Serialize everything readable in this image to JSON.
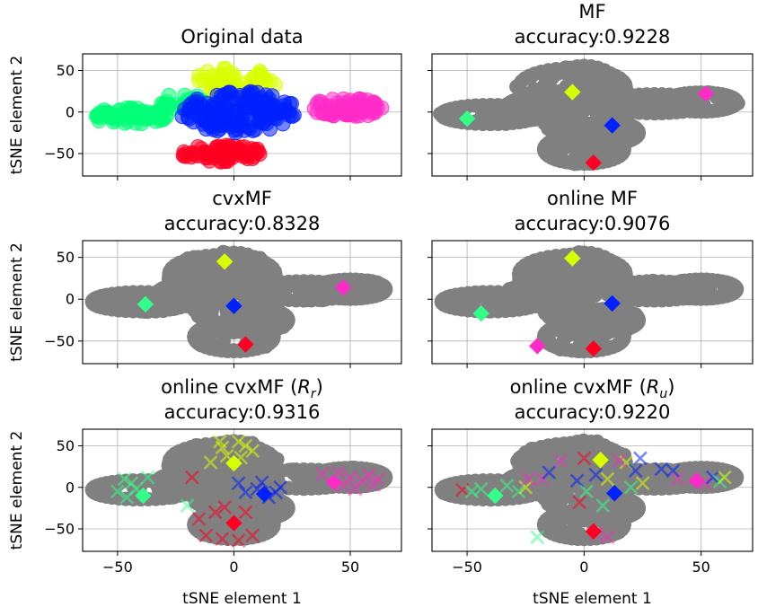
{
  "chart_data": [
    {
      "type": "scatter",
      "title": [
        "Original data"
      ],
      "ylabel": "tSNE element 2",
      "xlabel": "",
      "xlim": [
        -65,
        72
      ],
      "ylim": [
        -77,
        70
      ],
      "xticks": [
        -50,
        0,
        50
      ],
      "yticks": [
        50,
        0,
        -50
      ],
      "show_xticklabels": false,
      "show_yticklabels": true,
      "grid": true,
      "clusters": [
        {
          "color": "#d8ff00",
          "cx": 0,
          "cy": 35,
          "rx": 18,
          "ry": 18,
          "n": 60
        },
        {
          "color": "#ff2bc8",
          "cx": 48,
          "cy": 5,
          "rx": 16,
          "ry": 12,
          "n": 80
        },
        {
          "color": "#00ff77",
          "cx": -45,
          "cy": -5,
          "rx": 16,
          "ry": 10,
          "n": 70
        },
        {
          "color": "#ff0022",
          "cx": -5,
          "cy": -50,
          "rx": 18,
          "ry": 10,
          "n": 70
        },
        {
          "color": "#00ff77",
          "cx": -22,
          "cy": 12,
          "rx": 10,
          "ry": 10,
          "n": 25
        },
        {
          "color": "#0020ff",
          "cx": 2,
          "cy": 0,
          "rx": 25,
          "ry": 25,
          "n": 160
        }
      ],
      "centroids": [],
      "crosses": []
    },
    {
      "type": "scatter",
      "title": [
        "MF",
        "accuracy:0.9228"
      ],
      "ylabel": "",
      "xlabel": "",
      "xlim": [
        -65,
        72
      ],
      "ylim": [
        -77,
        70
      ],
      "xticks": [
        -50,
        0,
        50
      ],
      "yticks": [
        50,
        0,
        -50
      ],
      "show_xticklabels": false,
      "show_yticklabels": false,
      "grid": true,
      "clusters": [],
      "centroids": [
        {
          "x": -50,
          "y": -8,
          "color": "#33ff88"
        },
        {
          "x": -5,
          "y": 24,
          "color": "#d8ff00"
        },
        {
          "x": 52,
          "y": 22,
          "color": "#ff2bc8"
        },
        {
          "x": 12,
          "y": -16,
          "color": "#0020ff"
        },
        {
          "x": 4,
          "y": -61,
          "color": "#ff0022"
        }
      ],
      "crosses": []
    },
    {
      "type": "scatter",
      "title": [
        "cvxMF",
        "accuracy:0.8328"
      ],
      "ylabel": "tSNE element 2",
      "xlabel": "",
      "xlim": [
        -65,
        72
      ],
      "ylim": [
        -77,
        70
      ],
      "xticks": [
        -50,
        0,
        50
      ],
      "yticks": [
        50,
        0,
        -50
      ],
      "show_xticklabels": false,
      "show_yticklabels": true,
      "grid": true,
      "clusters": [],
      "centroids": [
        {
          "x": -38,
          "y": -6,
          "color": "#33ff88"
        },
        {
          "x": -4,
          "y": 45,
          "color": "#d8ff00"
        },
        {
          "x": 47,
          "y": 14,
          "color": "#ff2bc8"
        },
        {
          "x": 0,
          "y": -8,
          "color": "#0020ff"
        },
        {
          "x": 5,
          "y": -54,
          "color": "#ff0022"
        }
      ],
      "crosses": []
    },
    {
      "type": "scatter",
      "title": [
        "online MF",
        "accuracy:0.9076"
      ],
      "ylabel": "",
      "xlabel": "",
      "xlim": [
        -65,
        72
      ],
      "ylim": [
        -77,
        70
      ],
      "xticks": [
        -50,
        0,
        50
      ],
      "yticks": [
        50,
        0,
        -50
      ],
      "show_xticklabels": false,
      "show_yticklabels": false,
      "grid": true,
      "clusters": [],
      "centroids": [
        {
          "x": -44,
          "y": -17,
          "color": "#33ff88"
        },
        {
          "x": -5,
          "y": 49,
          "color": "#d8ff00"
        },
        {
          "x": -20,
          "y": -56,
          "color": "#ff2bc8"
        },
        {
          "x": 12,
          "y": -5,
          "color": "#0020ff"
        },
        {
          "x": 4,
          "y": -59,
          "color": "#ff0022"
        }
      ],
      "crosses": []
    },
    {
      "type": "scatter",
      "title": [
        "online cvxMF (",
        "R",
        "r",
        ")",
        "accuracy:0.9316"
      ],
      "ylabel": "tSNE element 2",
      "xlabel": "tSNE element 1",
      "xlim": [
        -65,
        72
      ],
      "ylim": [
        -77,
        70
      ],
      "xticks": [
        -50,
        0,
        50
      ],
      "yticks": [
        50,
        0,
        -50
      ],
      "show_xticklabels": true,
      "show_yticklabels": true,
      "grid": true,
      "clusters": [],
      "centroids": [
        {
          "x": -39,
          "y": -10,
          "color": "#33ff88"
        },
        {
          "x": 0,
          "y": 29,
          "color": "#d8ff00"
        },
        {
          "x": 43,
          "y": 6,
          "color": "#ff2bc8"
        },
        {
          "x": 13,
          "y": -8,
          "color": "#0020ff"
        },
        {
          "x": 0,
          "y": -43,
          "color": "#ff0022"
        }
      ],
      "crosses": [
        {
          "x": -50,
          "y": -5,
          "color": "#33ff88"
        },
        {
          "x": -47,
          "y": 10,
          "color": "#33ff88"
        },
        {
          "x": -44,
          "y": 5,
          "color": "#33ff88"
        },
        {
          "x": -42,
          "y": -2,
          "color": "#33ff88"
        },
        {
          "x": -46,
          "y": -12,
          "color": "#33ff88"
        },
        {
          "x": -37,
          "y": 12,
          "color": "#33ff88"
        },
        {
          "x": -20,
          "y": -22,
          "color": "#33ff88"
        },
        {
          "x": -5,
          "y": 48,
          "color": "#d8ff00"
        },
        {
          "x": 2,
          "y": 55,
          "color": "#d8ff00"
        },
        {
          "x": 5,
          "y": 50,
          "color": "#d8ff00"
        },
        {
          "x": -3,
          "y": 38,
          "color": "#d8ff00"
        },
        {
          "x": 8,
          "y": 44,
          "color": "#d8ff00"
        },
        {
          "x": -10,
          "y": 30,
          "color": "#d8ff00"
        },
        {
          "x": 3,
          "y": 36,
          "color": "#d8ff00"
        },
        {
          "x": -6,
          "y": 55,
          "color": "#d8ff00"
        },
        {
          "x": 38,
          "y": 16,
          "color": "#ff2bc8"
        },
        {
          "x": 45,
          "y": 18,
          "color": "#ff2bc8"
        },
        {
          "x": 50,
          "y": 12,
          "color": "#ff2bc8"
        },
        {
          "x": 55,
          "y": 8,
          "color": "#ff2bc8"
        },
        {
          "x": 58,
          "y": 15,
          "color": "#ff2bc8"
        },
        {
          "x": 60,
          "y": 3,
          "color": "#ff2bc8"
        },
        {
          "x": 52,
          "y": -2,
          "color": "#ff2bc8"
        },
        {
          "x": 47,
          "y": 2,
          "color": "#ff2bc8"
        },
        {
          "x": 62,
          "y": 10,
          "color": "#ff2bc8"
        },
        {
          "x": 5,
          "y": -6,
          "color": "#0020ff"
        },
        {
          "x": 10,
          "y": -2,
          "color": "#0020ff"
        },
        {
          "x": 15,
          "y": -12,
          "color": "#0020ff"
        },
        {
          "x": 18,
          "y": -6,
          "color": "#0020ff"
        },
        {
          "x": 20,
          "y": 0,
          "color": "#0020ff"
        },
        {
          "x": 12,
          "y": 6,
          "color": "#0020ff"
        },
        {
          "x": 2,
          "y": 5,
          "color": "#0020ff"
        },
        {
          "x": -8,
          "y": -30,
          "color": "#ff0022"
        },
        {
          "x": -12,
          "y": -58,
          "color": "#ff0022"
        },
        {
          "x": -5,
          "y": -62,
          "color": "#ff0022"
        },
        {
          "x": 2,
          "y": -64,
          "color": "#ff0022"
        },
        {
          "x": 8,
          "y": -58,
          "color": "#ff0022"
        },
        {
          "x": -15,
          "y": -38,
          "color": "#ff0022"
        },
        {
          "x": 5,
          "y": -30,
          "color": "#ff0022"
        },
        {
          "x": -18,
          "y": 12,
          "color": "#ff0022"
        },
        {
          "x": -4,
          "y": -24,
          "color": "#ff0022"
        }
      ]
    },
    {
      "type": "scatter",
      "title": [
        "online cvxMF (",
        "R",
        "u",
        ")",
        "accuracy:0.9220"
      ],
      "ylabel": "",
      "xlabel": "tSNE element 1",
      "xlim": [
        -65,
        72
      ],
      "ylim": [
        -77,
        70
      ],
      "xticks": [
        -50,
        0,
        50
      ],
      "yticks": [
        50,
        0,
        -50
      ],
      "show_xticklabels": true,
      "show_yticklabels": false,
      "grid": true,
      "clusters": [],
      "centroids": [
        {
          "x": -38,
          "y": -10,
          "color": "#33ff88"
        },
        {
          "x": 7,
          "y": 33,
          "color": "#d8ff00"
        },
        {
          "x": 48,
          "y": 8,
          "color": "#ff2bc8"
        },
        {
          "x": 13,
          "y": -7,
          "color": "#0020ff"
        },
        {
          "x": 4,
          "y": -53,
          "color": "#ff0022"
        }
      ],
      "crosses": [
        {
          "x": -52,
          "y": -3,
          "color": "#ff0022"
        },
        {
          "x": -48,
          "y": -5,
          "color": "#33ff88"
        },
        {
          "x": -44,
          "y": -2,
          "color": "#33ff88"
        },
        {
          "x": -33,
          "y": 2,
          "color": "#33ff88"
        },
        {
          "x": -28,
          "y": -5,
          "color": "#33ff88"
        },
        {
          "x": -25,
          "y": 0,
          "color": "#d8ff00"
        },
        {
          "x": -18,
          "y": 10,
          "color": "#ff2bc8"
        },
        {
          "x": -15,
          "y": 18,
          "color": "#0020ff"
        },
        {
          "x": -20,
          "y": -60,
          "color": "#33ff88"
        },
        {
          "x": -3,
          "y": 8,
          "color": "#0020ff"
        },
        {
          "x": -2,
          "y": -18,
          "color": "#ff0022"
        },
        {
          "x": 0,
          "y": 35,
          "color": "#ff0022"
        },
        {
          "x": 5,
          "y": 15,
          "color": "#0020ff"
        },
        {
          "x": 10,
          "y": 10,
          "color": "#d8ff00"
        },
        {
          "x": 18,
          "y": 30,
          "color": "#d8ff00"
        },
        {
          "x": 15,
          "y": 32,
          "color": "#ff2bc8"
        },
        {
          "x": 22,
          "y": 20,
          "color": "#0020ff"
        },
        {
          "x": 24,
          "y": 35,
          "color": "#0020ff"
        },
        {
          "x": 20,
          "y": 0,
          "color": "#33ff88"
        },
        {
          "x": 25,
          "y": 5,
          "color": "#d8ff00"
        },
        {
          "x": 33,
          "y": 22,
          "color": "#0020ff"
        },
        {
          "x": 38,
          "y": 20,
          "color": "#0020ff"
        },
        {
          "x": 40,
          "y": 10,
          "color": "#ff2bc8"
        },
        {
          "x": 52,
          "y": 5,
          "color": "#ff2bc8"
        },
        {
          "x": 55,
          "y": 12,
          "color": "#0020ff"
        },
        {
          "x": 58,
          "y": 7,
          "color": "#33ff88"
        },
        {
          "x": 60,
          "y": 12,
          "color": "#d8ff00"
        },
        {
          "x": 8,
          "y": -22,
          "color": "#33ff88"
        },
        {
          "x": 5,
          "y": -56,
          "color": "#ff2bc8"
        },
        {
          "x": 10,
          "y": -60,
          "color": "#ff2bc8"
        },
        {
          "x": -10,
          "y": 32,
          "color": "#ff2bc8"
        },
        {
          "x": 1,
          "y": -5,
          "color": "#33ff88"
        },
        {
          "x": -24,
          "y": 10,
          "color": "#ff2bc8"
        }
      ]
    }
  ]
}
